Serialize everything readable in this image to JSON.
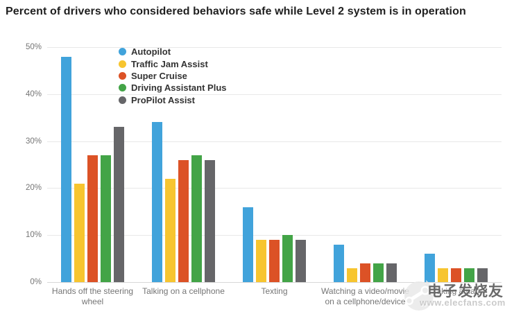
{
  "title": "Percent of drivers who considered behaviors safe while Level 2 system is in operation",
  "chart_data": {
    "type": "bar",
    "title": "Percent of drivers who considered behaviors safe while Level 2 system is in operation",
    "categories": [
      "Hands off the steering wheel",
      "Talking on a cellphone",
      "Texting",
      "Watching a video/movie on a cellphone/device",
      "Taking a nap"
    ],
    "series": [
      {
        "name": "Autopilot",
        "color": "#41A3DB",
        "values": [
          48,
          34,
          16,
          8,
          6
        ]
      },
      {
        "name": "Traffic Jam Assist",
        "color": "#F7C52F",
        "values": [
          21,
          22,
          9,
          3,
          3
        ]
      },
      {
        "name": "Super Cruise",
        "color": "#DC5226",
        "values": [
          27,
          26,
          9,
          4,
          3
        ]
      },
      {
        "name": "Driving Assistant Plus",
        "color": "#43A447",
        "values": [
          27,
          27,
          10,
          4,
          3
        ]
      },
      {
        "name": "ProPilot Assist",
        "color": "#666669",
        "values": [
          33,
          26,
          9,
          4,
          3
        ]
      }
    ],
    "xlabel": "",
    "ylabel": "",
    "ylim": [
      0,
      50
    ],
    "yticks": [
      "0%",
      "10%",
      "20%",
      "30%",
      "40%",
      "50%"
    ],
    "grid": true,
    "legend_position": "top-left-inside"
  },
  "watermark": {
    "cn_text": "电子发烧友",
    "url_text": "www.elecfans.com"
  }
}
